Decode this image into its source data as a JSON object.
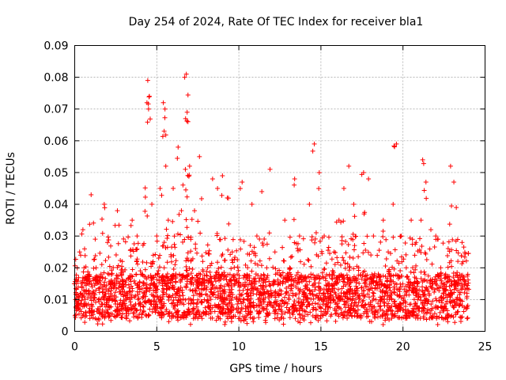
{
  "chart_data": {
    "type": "scatter",
    "title": "Day 254 of 2024, Rate Of TEC Index for receiver bla1",
    "xlabel": "GPS time / hours",
    "ylabel": "ROTI / TECUs",
    "xlim": [
      0,
      25
    ],
    "ylim": [
      0,
      0.09
    ],
    "xticks": [
      0,
      5,
      10,
      15,
      20,
      25
    ],
    "xtick_labels": [
      "0",
      "5",
      "10",
      "15",
      "20",
      "25"
    ],
    "yticks": [
      0,
      0.01,
      0.02,
      0.03,
      0.04,
      0.05,
      0.06,
      0.07,
      0.08,
      0.09
    ],
    "ytick_labels": [
      "0",
      "0.01",
      "0.02",
      "0.03",
      "0.04",
      "0.05",
      "0.06",
      "0.07",
      "0.08",
      "0.09"
    ],
    "grid": true,
    "marker": "+",
    "color": "#ff0000",
    "series": [
      {
        "name": "ROTI",
        "x": [
          0.1,
          0.3,
          0.5,
          0.7,
          1.0,
          1.3,
          1.6,
          1.8,
          2.0,
          2.3,
          2.6,
          2.9,
          3.2,
          3.5,
          3.8,
          4.1,
          4.4,
          4.45,
          4.5,
          4.55,
          4.7,
          5.0,
          5.2,
          5.4,
          5.45,
          5.5,
          5.55,
          5.7,
          6.0,
          6.3,
          6.5,
          6.7,
          6.8,
          6.85,
          6.9,
          7.0,
          7.3,
          7.6,
          7.8,
          8.1,
          8.4,
          8.7,
          9.0,
          9.3,
          9.6,
          9.9,
          10.2,
          10.5,
          10.8,
          11.1,
          11.4,
          11.7,
          11.9,
          12.2,
          12.5,
          12.8,
          13.1,
          13.4,
          13.7,
          14.0,
          14.3,
          14.6,
          14.9,
          15.2,
          15.5,
          15.8,
          16.1,
          16.4,
          16.7,
          17.0,
          17.3,
          17.6,
          17.9,
          18.2,
          18.5,
          18.8,
          19.1,
          19.4,
          19.6,
          19.9,
          20.2,
          20.5,
          20.8,
          21.1,
          21.2,
          21.4,
          21.7,
          22.0,
          22.3,
          22.6,
          22.9,
          23.1,
          23.3,
          23.6,
          23.9
        ],
        "y": [
          0.015,
          0.025,
          0.032,
          0.012,
          0.043,
          0.02,
          0.018,
          0.04,
          0.028,
          0.015,
          0.038,
          0.022,
          0.012,
          0.035,
          0.03,
          0.018,
          0.072,
          0.079,
          0.07,
          0.074,
          0.04,
          0.03,
          0.045,
          0.072,
          0.063,
          0.07,
          0.052,
          0.035,
          0.045,
          0.058,
          0.038,
          0.08,
          0.081,
          0.069,
          0.066,
          0.052,
          0.038,
          0.055,
          0.022,
          0.02,
          0.048,
          0.045,
          0.049,
          0.042,
          0.025,
          0.018,
          0.047,
          0.012,
          0.04,
          0.03,
          0.044,
          0.02,
          0.051,
          0.025,
          0.015,
          0.035,
          0.02,
          0.048,
          0.03,
          0.012,
          0.04,
          0.059,
          0.05,
          0.03,
          0.015,
          0.025,
          0.035,
          0.045,
          0.052,
          0.04,
          0.02,
          0.05,
          0.048,
          0.03,
          0.018,
          0.035,
          0.025,
          0.04,
          0.059,
          0.03,
          0.02,
          0.035,
          0.028,
          0.035,
          0.054,
          0.047,
          0.032,
          0.03,
          0.02,
          0.018,
          0.052,
          0.047,
          0.015,
          0.028,
          0.012
        ],
        "dense_band": {
          "x_range": [
            0,
            24
          ],
          "y_range": [
            0.002,
            0.03
          ]
        }
      }
    ]
  }
}
